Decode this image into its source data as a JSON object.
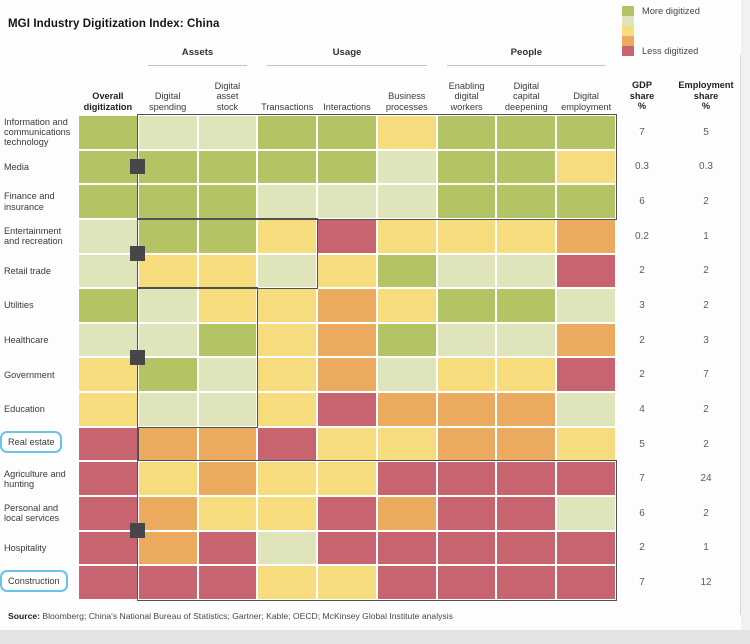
{
  "title": "MGI Industry Digitization Index: China",
  "legend": {
    "more_label": "More digitized",
    "less_label": "Less digitized",
    "colors": [
      "#b4c363",
      "#dfe4bb",
      "#f6dc7d",
      "#ebaa5e",
      "#c8646f"
    ]
  },
  "value_headers": {
    "gdp": [
      "GDP",
      "share",
      "%"
    ],
    "employment": [
      "Employment",
      "share",
      "%"
    ]
  },
  "source": {
    "label": "Source:",
    "text": "Bloomberg; China's National Bureau of Statistics; Gartner; Kable; OECD;  McKinsey Global Institute analysis"
  },
  "chart_data": {
    "type": "heatmap",
    "title": "MGI Industry Digitization Index: China",
    "scale_note": "ordinal 1 (less digitized, red) to 5 (more digitized, green)",
    "palette": {
      "5": "#b4c363",
      "4": "#dfe4bb",
      "3": "#f6dc7d",
      "2": "#ebaa5e",
      "1": "#c8646f"
    },
    "columns": [
      "Overall digitization",
      "Digital spending",
      "Digital asset stock",
      "Transactions",
      "Interactions",
      "Business processes",
      "Enabling digital workers",
      "Digital capital deepening",
      "Digital employment"
    ],
    "column_header_lines": [
      [
        "Overall",
        "digitization"
      ],
      [
        "Digital",
        "spending"
      ],
      [
        "Digital",
        "asset",
        "stock"
      ],
      [
        "Transactions"
      ],
      [
        "Interactions"
      ],
      [
        "Business",
        "processes"
      ],
      [
        "Enabling",
        "digital",
        "workers"
      ],
      [
        "Digital",
        "capital",
        "deepening"
      ],
      [
        "Digital",
        "employment"
      ]
    ],
    "column_groups": [
      {
        "label": "Assets",
        "col_start": 2,
        "col_end": 3
      },
      {
        "label": "Usage",
        "col_start": 4,
        "col_end": 6
      },
      {
        "label": "People",
        "col_start": 7,
        "col_end": 9
      }
    ],
    "rows": [
      {
        "label": "Information and communications technology",
        "values": [
          5,
          4,
          4,
          5,
          5,
          3,
          5,
          5,
          5
        ],
        "gdp_share": "7",
        "employment_share": "5",
        "highlighted": false
      },
      {
        "label": "Media",
        "values": [
          5,
          5,
          5,
          5,
          5,
          4,
          5,
          5,
          3
        ],
        "gdp_share": "0.3",
        "employment_share": "0.3",
        "highlighted": false
      },
      {
        "label": "Finance and insurance",
        "values": [
          5,
          5,
          5,
          4,
          4,
          4,
          5,
          5,
          5
        ],
        "gdp_share": "6",
        "employment_share": "2",
        "highlighted": false
      },
      {
        "label": "Entertainment and recreation",
        "values": [
          4,
          5,
          5,
          3,
          1,
          3,
          3,
          3,
          2
        ],
        "gdp_share": "0.2",
        "employment_share": "1",
        "highlighted": false
      },
      {
        "label": "Retail trade",
        "values": [
          4,
          3,
          3,
          4,
          3,
          5,
          4,
          4,
          1
        ],
        "gdp_share": "2",
        "employment_share": "2",
        "highlighted": false
      },
      {
        "label": "Utilities",
        "values": [
          5,
          4,
          3,
          3,
          2,
          3,
          5,
          5,
          4
        ],
        "gdp_share": "3",
        "employment_share": "2",
        "highlighted": false
      },
      {
        "label": "Healthcare",
        "values": [
          4,
          4,
          5,
          3,
          2,
          5,
          4,
          4,
          2
        ],
        "gdp_share": "2",
        "employment_share": "3",
        "highlighted": false
      },
      {
        "label": "Government",
        "values": [
          3,
          5,
          4,
          3,
          2,
          4,
          3,
          3,
          1
        ],
        "gdp_share": "2",
        "employment_share": "7",
        "highlighted": false
      },
      {
        "label": "Education",
        "values": [
          3,
          4,
          4,
          3,
          1,
          2,
          2,
          2,
          4
        ],
        "gdp_share": "4",
        "employment_share": "2",
        "highlighted": false
      },
      {
        "label": "Real estate",
        "values": [
          1,
          2,
          2,
          1,
          3,
          3,
          2,
          2,
          3
        ],
        "gdp_share": "5",
        "employment_share": "2",
        "highlighted": true
      },
      {
        "label": "Agriculture and hunting",
        "values": [
          1,
          3,
          2,
          3,
          3,
          1,
          1,
          1,
          1
        ],
        "gdp_share": "7",
        "employment_share": "24",
        "highlighted": false
      },
      {
        "label": "Personal and local services",
        "values": [
          1,
          2,
          3,
          3,
          1,
          2,
          1,
          1,
          4
        ],
        "gdp_share": "6",
        "employment_share": "2",
        "highlighted": false
      },
      {
        "label": "Hospitality",
        "values": [
          1,
          2,
          1,
          4,
          1,
          1,
          1,
          1,
          1
        ],
        "gdp_share": "2",
        "employment_share": "1",
        "highlighted": false
      },
      {
        "label": "Construction",
        "values": [
          1,
          1,
          1,
          3,
          3,
          1,
          1,
          1,
          1
        ],
        "gdp_share": "7",
        "employment_share": "12",
        "highlighted": true
      }
    ],
    "outline_boxes": [
      {
        "row_start": 1,
        "row_end": 3,
        "col_start": 2,
        "col_end": 9
      },
      {
        "row_start": 4,
        "row_end": 5,
        "col_start": 2,
        "col_end": 4
      },
      {
        "row_start": 6,
        "row_end": 9,
        "col_start": 2,
        "col_end": 3
      },
      {
        "row_start": 11,
        "row_end": 14,
        "col_start": 2,
        "col_end": 9
      }
    ],
    "step_line_handles": [
      {
        "row": 2,
        "align": "center"
      },
      {
        "row": 5,
        "align": "top"
      },
      {
        "row": 8,
        "align": "top"
      },
      {
        "row": 13,
        "align": "top"
      }
    ]
  }
}
